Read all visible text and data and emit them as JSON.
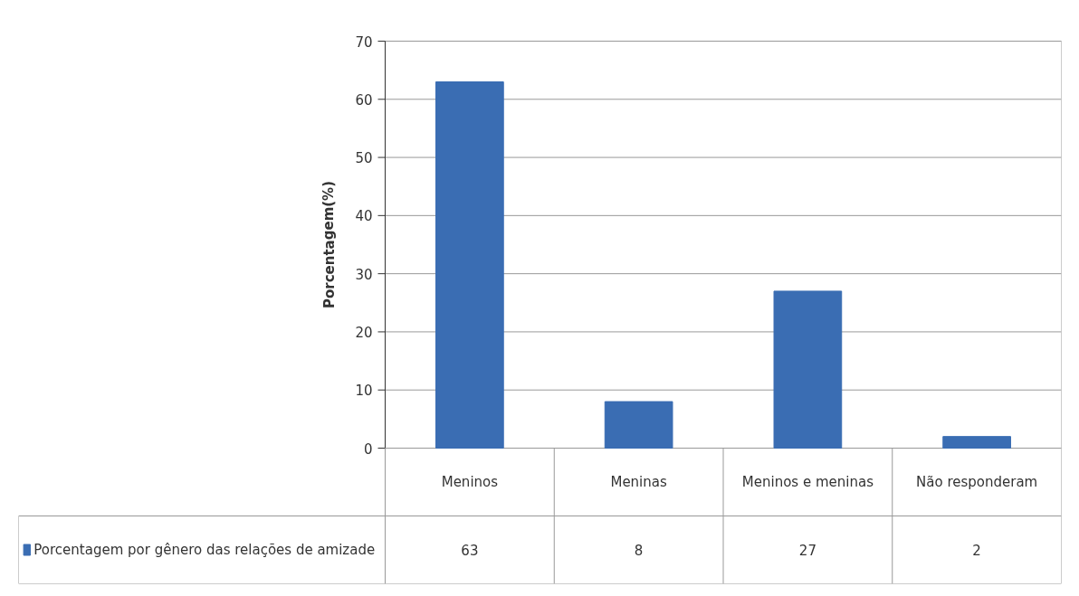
{
  "chart_data": {
    "type": "bar",
    "ylabel": "Porcentagem(%)",
    "categories": [
      "Meninos",
      "Meninas",
      "Meninos e meninas",
      "Não responderam"
    ],
    "series": [
      {
        "name": "Porcentagem por gênero das relações de amizade",
        "color": "#3a6db3",
        "values": [
          63,
          8,
          27,
          2
        ]
      }
    ],
    "ylim": [
      0,
      70
    ],
    "yticks": [
      0,
      10,
      20,
      30,
      40,
      50,
      60,
      70
    ],
    "grid": "y",
    "legend": "bottom",
    "data_labels": true
  }
}
